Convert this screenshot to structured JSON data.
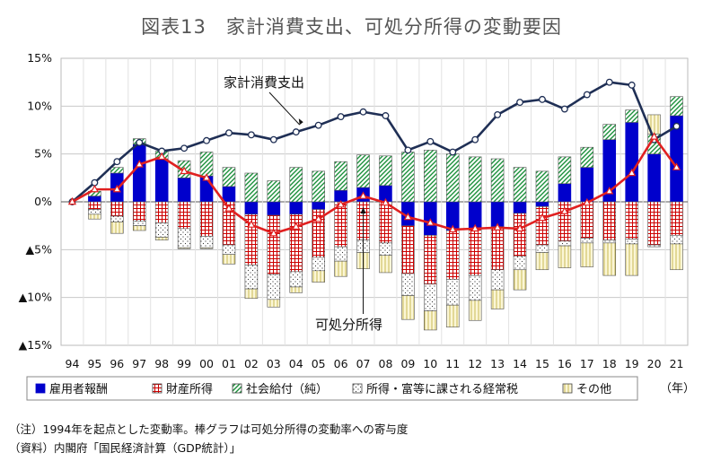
{
  "title": "図表13　家計消費支出、可処分所得の変動要因",
  "notes": {
    "note1": "（注）1994年を起点とした変動率。棒グラフは可処分所得の変動率への寄与度",
    "note2": "（資料）内閣府「国民経済計算（GDP統計）」"
  },
  "chart_data": {
    "type": "bar",
    "stacked": true,
    "categories": [
      "94",
      "95",
      "96",
      "97",
      "98",
      "99",
      "00",
      "01",
      "02",
      "03",
      "04",
      "05",
      "06",
      "07",
      "08",
      "09",
      "10",
      "11",
      "12",
      "13",
      "14",
      "15",
      "16",
      "17",
      "18",
      "19",
      "20",
      "21"
    ],
    "x_unit_label": "（年）",
    "ylim": [
      -15,
      15
    ],
    "yticks": [
      15,
      10,
      5,
      0,
      -5,
      -10,
      -15
    ],
    "ytick_labels": [
      "15%",
      "10%",
      "5%",
      "0%",
      "▲5%",
      "▲10%",
      "▲15%"
    ],
    "grid": true,
    "legend_position": "bottom",
    "series": [
      {
        "name": "雇用者報酬",
        "type": "bar",
        "color": "#0000cc",
        "pattern": "solid",
        "values": [
          0,
          0.6,
          3.0,
          6.0,
          4.5,
          2.5,
          2.7,
          1.6,
          -1.3,
          -1.4,
          -1.3,
          -0.8,
          1.2,
          1.5,
          1.7,
          -2.5,
          -3.5,
          -3.0,
          -2.8,
          -2.6,
          -1.2,
          -0.5,
          1.9,
          3.6,
          6.5,
          8.3,
          5.0,
          9.0
        ]
      },
      {
        "name": "財産所得",
        "type": "bar",
        "color": "#cc0000",
        "pattern": "grid",
        "values": [
          0,
          -0.8,
          -1.5,
          -2.0,
          -2.2,
          -2.8,
          -3.6,
          -4.5,
          -5.3,
          -6.2,
          -6.0,
          -5.0,
          -4.7,
          -4.0,
          -4.3,
          -5.0,
          -5.1,
          -5.1,
          -4.9,
          -4.5,
          -4.5,
          -4.0,
          -4.1,
          -3.8,
          -4.0,
          -3.9,
          -4.5,
          -3.5
        ]
      },
      {
        "name": "社会給付（純）",
        "type": "bar",
        "color": "#1a8f3a",
        "pattern": "diagonal",
        "values": [
          0,
          0.5,
          0.6,
          0.6,
          0.8,
          1.8,
          2.5,
          2.0,
          3.0,
          2.2,
          3.6,
          3.2,
          3.0,
          3.4,
          3.1,
          5.2,
          5.4,
          5.0,
          4.7,
          4.5,
          3.6,
          3.2,
          2.8,
          2.1,
          1.6,
          1.3,
          2.1,
          2.0
        ]
      },
      {
        "name": "所得・富等に課される経常税",
        "type": "bar",
        "color": "#333333",
        "pattern": "dots",
        "values": [
          0,
          -0.5,
          -0.6,
          -0.5,
          -1.5,
          -2.0,
          -1.2,
          -1.0,
          -2.5,
          -2.6,
          -1.6,
          -1.4,
          -1.5,
          -1.3,
          -1.3,
          -2.3,
          -2.8,
          -2.7,
          -2.6,
          -2.1,
          -1.4,
          -0.8,
          -0.5,
          -0.5,
          -0.3,
          -0.5,
          -0.2,
          -0.9
        ]
      },
      {
        "name": "その他",
        "type": "bar",
        "color": "#c9b955",
        "pattern": "vlines",
        "values": [
          0,
          -0.5,
          -1.2,
          -0.5,
          -0.3,
          -0.1,
          -0.1,
          -1.0,
          -1.0,
          -0.8,
          -0.6,
          -1.2,
          -1.6,
          -1.7,
          -1.8,
          -2.5,
          -2.0,
          -2.3,
          -2.1,
          -2.0,
          -2.1,
          -1.8,
          -2.3,
          -2.5,
          -3.4,
          -3.3,
          2.0,
          -2.7
        ]
      },
      {
        "name": "家計消費支出",
        "type": "line",
        "color": "#1f2f55",
        "marker": "circle",
        "values": [
          0,
          2.0,
          4.2,
          6.2,
          5.3,
          5.6,
          6.4,
          7.2,
          7.0,
          6.5,
          7.3,
          8.0,
          8.9,
          9.4,
          9.0,
          5.4,
          6.3,
          5.2,
          6.5,
          9.1,
          10.4,
          10.7,
          9.7,
          11.2,
          12.5,
          12.2,
          6.5,
          7.9
        ]
      },
      {
        "name": "可処分所得",
        "type": "line",
        "color": "#e02020",
        "marker": "triangle",
        "values": [
          0,
          1.3,
          1.3,
          3.9,
          4.7,
          3.2,
          2.5,
          -0.7,
          -2.4,
          -3.3,
          -2.6,
          -1.8,
          -0.3,
          0.6,
          -0.1,
          -1.6,
          -2.2,
          -2.9,
          -2.8,
          -2.7,
          -2.8,
          -1.7,
          -1.0,
          -0.1,
          1.1,
          3.0,
          6.8,
          3.6
        ]
      }
    ],
    "annotations": [
      {
        "text": "家計消費支出",
        "points_to": "家計消費支出",
        "at_x": "04"
      },
      {
        "text": "可処分所得",
        "points_to": "可処分所得",
        "at_x": "07"
      }
    ]
  }
}
